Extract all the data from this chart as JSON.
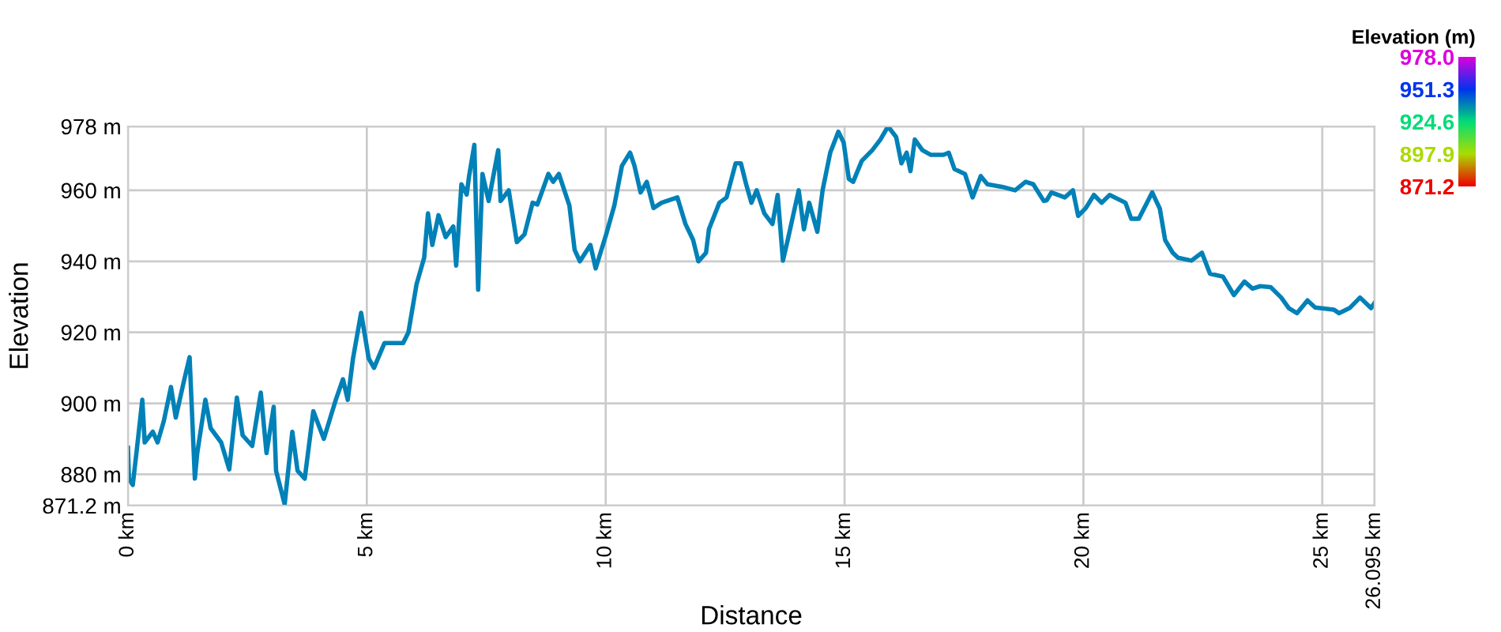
{
  "chart_data": {
    "type": "line",
    "xlabel": "Distance",
    "ylabel": "Elevation",
    "clabel": "Elevation (m)",
    "xlim": [
      0,
      26.095
    ],
    "ylim": [
      871.2,
      978
    ],
    "xticks": [
      {
        "value": 0,
        "label": "0 km"
      },
      {
        "value": 5,
        "label": "5 km"
      },
      {
        "value": 10,
        "label": "10 km"
      },
      {
        "value": 15,
        "label": "15 km"
      },
      {
        "value": 20,
        "label": "20 km"
      },
      {
        "value": 25,
        "label": "25 km"
      },
      {
        "value": 26.095,
        "label": "26.095 km"
      }
    ],
    "yticks": [
      {
        "value": 871.2,
        "label": "871.2 m"
      },
      {
        "value": 880,
        "label": "880 m"
      },
      {
        "value": 900,
        "label": "900 m"
      },
      {
        "value": 920,
        "label": "920 m"
      },
      {
        "value": 940,
        "label": "940 m"
      },
      {
        "value": 960,
        "label": "960 m"
      },
      {
        "value": 978,
        "label": "978 m"
      }
    ],
    "clim": [
      871.2,
      978.0
    ],
    "cticks": [
      {
        "value": 978.0,
        "label": "978.0"
      },
      {
        "value": 951.3,
        "label": "951.3"
      },
      {
        "value": 924.6,
        "label": "924.6"
      },
      {
        "value": 897.9,
        "label": "897.9"
      },
      {
        "value": 871.2,
        "label": "871.2"
      }
    ],
    "grid": true,
    "x": [
      0,
      0.02,
      0.1,
      0.19,
      0.3,
      0.35,
      0.52,
      0.62,
      0.75,
      0.9,
      1.0,
      1.18,
      1.29,
      1.4,
      1.45,
      1.62,
      1.73,
      1.95,
      2.12,
      2.28,
      2.4,
      2.6,
      2.78,
      2.9,
      3.05,
      3.1,
      3.28,
      3.44,
      3.55,
      3.7,
      3.88,
      4.1,
      4.35,
      4.5,
      4.6,
      4.71,
      4.88,
      5.04,
      5.15,
      5.37,
      5.76,
      5.87,
      6.04,
      6.2,
      6.28,
      6.37,
      6.5,
      6.65,
      6.81,
      6.87,
      6.98,
      7.09,
      7.14,
      7.25,
      7.33,
      7.42,
      7.55,
      7.75,
      7.8,
      7.97,
      8.14,
      8.3,
      8.47,
      8.57,
      8.8,
      8.9,
      9.02,
      9.24,
      9.35,
      9.46,
      9.68,
      9.79,
      10.01,
      10.18,
      10.34,
      10.51,
      10.6,
      10.73,
      10.86,
      11.0,
      11.17,
      11.5,
      11.67,
      11.83,
      11.94,
      12.1,
      12.16,
      12.38,
      12.53,
      12.72,
      12.83,
      12.94,
      13.05,
      13.16,
      13.32,
      13.49,
      13.6,
      13.71,
      13.82,
      14.04,
      14.15,
      14.26,
      14.43,
      14.54,
      14.7,
      14.87,
      14.98,
      15.09,
      15.18,
      15.36,
      15.58,
      15.75,
      15.91,
      16.08,
      16.19,
      16.3,
      16.38,
      16.47,
      16.63,
      16.8,
      17.07,
      17.18,
      17.3,
      17.52,
      17.68,
      17.85,
      17.99,
      18.29,
      18.57,
      18.79,
      18.95,
      19.17,
      19.23,
      19.33,
      19.61,
      19.78,
      19.89,
      20.05,
      20.22,
      20.38,
      20.55,
      20.88,
      21.0,
      21.16,
      21.44,
      21.6,
      21.71,
      21.87,
      21.98,
      22.26,
      22.48,
      22.65,
      22.92,
      23.15,
      23.37,
      23.54,
      23.7,
      23.92,
      24.14,
      24.3,
      24.47,
      24.69,
      24.85,
      25.24,
      25.35,
      25.57,
      25.79,
      26.02,
      26.095
    ],
    "values": [
      887.5,
      878.8,
      877,
      887.6,
      901,
      889,
      892,
      889,
      895,
      904.6,
      896,
      906.8,
      913,
      878.8,
      886,
      901,
      893,
      889,
      881.4,
      901.6,
      891,
      888,
      903,
      886,
      899,
      881,
      871.6,
      892,
      881,
      878.8,
      897.8,
      890,
      901,
      906.8,
      901,
      912.6,
      925.5,
      912.6,
      910,
      917,
      917,
      920,
      933.5,
      941,
      953.5,
      944.6,
      953,
      946.8,
      949.8,
      938.8,
      961.7,
      958.8,
      964,
      972.8,
      932,
      964.6,
      957,
      971.3,
      957,
      960,
      945.4,
      947.6,
      956.5,
      956,
      964.6,
      962.4,
      964.6,
      955.7,
      943.2,
      940,
      944.6,
      938,
      947.6,
      955.7,
      966.9,
      970.6,
      967,
      959.4,
      962.4,
      955,
      956.5,
      958,
      950.5,
      946,
      940,
      942.4,
      949,
      956.5,
      958,
      967.6,
      967.6,
      961.7,
      956.5,
      960,
      953.5,
      950.5,
      958.7,
      940.2,
      946.6,
      960,
      949,
      956.5,
      948.3,
      960,
      970.6,
      976.5,
      973.5,
      963.2,
      962.4,
      968.3,
      971.3,
      974.3,
      978,
      975,
      967.6,
      970.6,
      965.4,
      974.3,
      971.3,
      970,
      970,
      970.6,
      966,
      964.6,
      958,
      964,
      961.7,
      961,
      960,
      962.4,
      961.7,
      957,
      957.2,
      959.4,
      958,
      960,
      952.8,
      955,
      958.7,
      956.5,
      958.7,
      956.5,
      952,
      952,
      959.4,
      954.8,
      946,
      942.4,
      941,
      940.2,
      942.4,
      936.5,
      935.7,
      930.5,
      934.3,
      932.3,
      933,
      932.7,
      929.8,
      926.8,
      925.4,
      929,
      927,
      926.4,
      925.4,
      926.8,
      929.8,
      926.8,
      928.3
    ]
  }
}
